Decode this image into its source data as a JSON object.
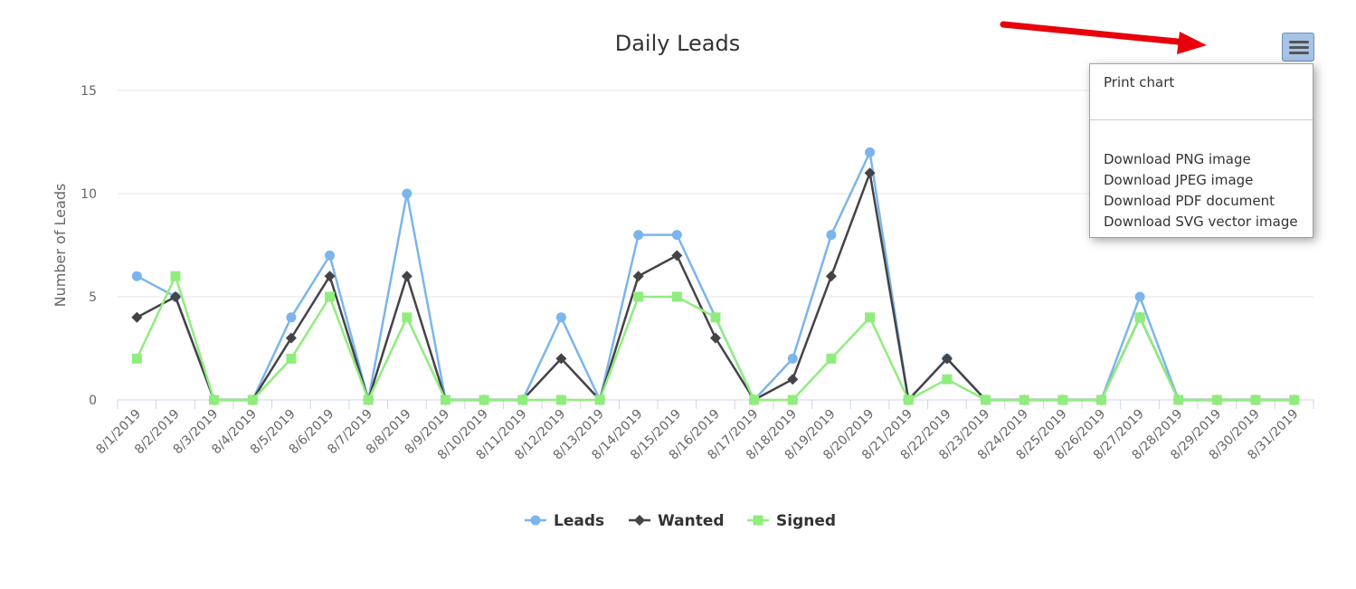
{
  "chart_data": {
    "type": "line",
    "title": "Daily Leads",
    "xlabel": "",
    "ylabel": "Number of Leads",
    "ylim": [
      0,
      15
    ],
    "yticks": [
      0,
      5,
      10,
      15
    ],
    "grid": true,
    "legend_position": "bottom-center",
    "categories": [
      "8/1/2019",
      "8/2/2019",
      "8/3/2019",
      "8/4/2019",
      "8/5/2019",
      "8/6/2019",
      "8/7/2019",
      "8/8/2019",
      "8/9/2019",
      "8/10/2019",
      "8/11/2019",
      "8/12/2019",
      "8/13/2019",
      "8/14/2019",
      "8/15/2019",
      "8/16/2019",
      "8/17/2019",
      "8/18/2019",
      "8/19/2019",
      "8/20/2019",
      "8/21/2019",
      "8/22/2019",
      "8/23/2019",
      "8/24/2019",
      "8/25/2019",
      "8/26/2019",
      "8/27/2019",
      "8/28/2019",
      "8/29/2019",
      "8/30/2019",
      "8/31/2019"
    ],
    "series": [
      {
        "name": "Leads",
        "color": "#7cb5ec",
        "marker": "circle",
        "values": [
          6,
          5,
          0,
          0,
          4,
          7,
          0,
          10,
          0,
          0,
          0,
          4,
          0,
          8,
          8,
          4,
          0,
          2,
          8,
          12,
          0,
          2,
          0,
          0,
          0,
          0,
          5,
          0,
          0,
          0,
          0
        ]
      },
      {
        "name": "Wanted",
        "color": "#434348",
        "marker": "diamond",
        "values": [
          4,
          5,
          0,
          0,
          3,
          6,
          0,
          6,
          0,
          0,
          0,
          2,
          0,
          6,
          7,
          3,
          0,
          1,
          6,
          11,
          0,
          2,
          0,
          0,
          0,
          0,
          4,
          0,
          0,
          0,
          0
        ]
      },
      {
        "name": "Signed",
        "color": "#90ed7d",
        "marker": "square",
        "values": [
          2,
          6,
          0,
          0,
          2,
          5,
          0,
          4,
          0,
          0,
          0,
          0,
          0,
          5,
          5,
          4,
          0,
          0,
          2,
          4,
          0,
          1,
          0,
          0,
          0,
          0,
          4,
          0,
          0,
          0,
          0
        ]
      }
    ]
  },
  "menu": {
    "button_icon": "hamburger-menu-icon",
    "items": [
      "Print chart",
      "Download PNG image",
      "Download JPEG image",
      "Download PDF document",
      "Download SVG vector image"
    ]
  },
  "annotation": {
    "arrow_color": "#e8000b",
    "icon": "red-arrow-icon"
  }
}
